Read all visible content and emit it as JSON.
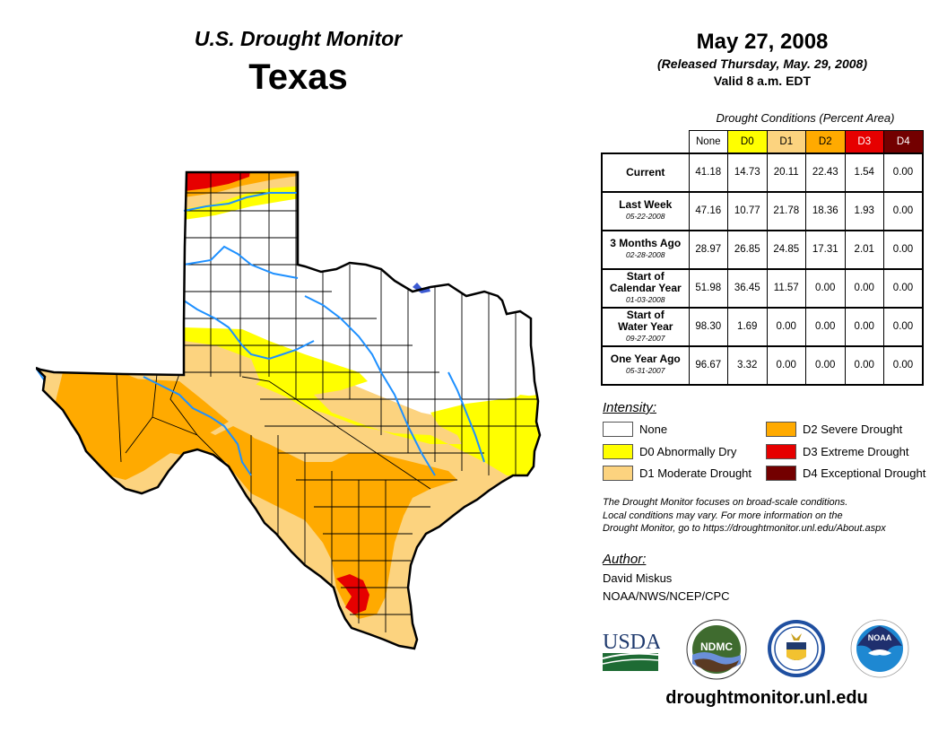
{
  "header": {
    "title": "U.S. Drought Monitor",
    "state": "Texas"
  },
  "date": {
    "main": "May 27, 2008",
    "released": "(Released Thursday, May. 29, 2008)",
    "valid": "Valid 8 a.m. EDT"
  },
  "table": {
    "caption": "Drought Conditions (Percent Area)",
    "columns": [
      {
        "label": "None",
        "color": "#ffffff",
        "text_color": "#000000"
      },
      {
        "label": "D0",
        "color": "#ffff00",
        "text_color": "#000000"
      },
      {
        "label": "D1",
        "color": "#fcd37f",
        "text_color": "#000000"
      },
      {
        "label": "D2",
        "color": "#ffaa00",
        "text_color": "#000000"
      },
      {
        "label": "D3",
        "color": "#e60000",
        "text_color": "#ffffff"
      },
      {
        "label": "D4",
        "color": "#730000",
        "text_color": "#ffffff"
      }
    ],
    "rows": [
      {
        "label": "Current",
        "label2": "",
        "date": "",
        "values": [
          "41.18",
          "14.73",
          "20.11",
          "22.43",
          "1.54",
          "0.00"
        ]
      },
      {
        "label": "Last Week",
        "label2": "",
        "date": "05-22-2008",
        "values": [
          "47.16",
          "10.77",
          "21.78",
          "18.36",
          "1.93",
          "0.00"
        ]
      },
      {
        "label": "3 Months Ago",
        "label2": "",
        "date": "02-28-2008",
        "values": [
          "28.97",
          "26.85",
          "24.85",
          "17.31",
          "2.01",
          "0.00"
        ]
      },
      {
        "label": "Start of",
        "label2": "Calendar Year",
        "date": "01-03-2008",
        "values": [
          "51.98",
          "36.45",
          "11.57",
          "0.00",
          "0.00",
          "0.00"
        ]
      },
      {
        "label": "Start of",
        "label2": "Water Year",
        "date": "09-27-2007",
        "values": [
          "98.30",
          "1.69",
          "0.00",
          "0.00",
          "0.00",
          "0.00"
        ]
      },
      {
        "label": "One Year Ago",
        "label2": "",
        "date": "05-31-2007",
        "values": [
          "96.67",
          "3.32",
          "0.00",
          "0.00",
          "0.00",
          "0.00"
        ]
      }
    ]
  },
  "legend": {
    "title": "Intensity:",
    "items": [
      {
        "label": "None",
        "color": "#ffffff"
      },
      {
        "label": "D0 Abnormally Dry",
        "color": "#ffff00"
      },
      {
        "label": "D1 Moderate Drought",
        "color": "#fcd37f"
      },
      {
        "label": "D2 Severe Drought",
        "color": "#ffaa00"
      },
      {
        "label": "D3 Extreme Drought",
        "color": "#e60000"
      },
      {
        "label": "D4 Exceptional Drought",
        "color": "#730000"
      }
    ]
  },
  "note": {
    "line1": "The Drought Monitor focuses on broad-scale conditions.",
    "line2": "Local conditions may vary. For more information on the",
    "line3": "Drought Monitor, go to https://droughtmonitor.unl.edu/About.aspx"
  },
  "author": {
    "title": "Author:",
    "name": "David Miskus",
    "org": "NOAA/NWS/NCEP/CPC"
  },
  "logos": {
    "usda": "USDA",
    "ndmc": "NDMC",
    "noaa": "NOAA"
  },
  "footer": {
    "url": "droughtmonitor.unl.edu"
  },
  "map": {
    "region": "Texas",
    "colors": {
      "none": "#ffffff",
      "d0": "#ffff00",
      "d1": "#fcd37f",
      "d2": "#ffaa00",
      "d3": "#e60000",
      "river": "#1e90ff",
      "lake": "#3c5ad2",
      "border": "#000000"
    }
  }
}
